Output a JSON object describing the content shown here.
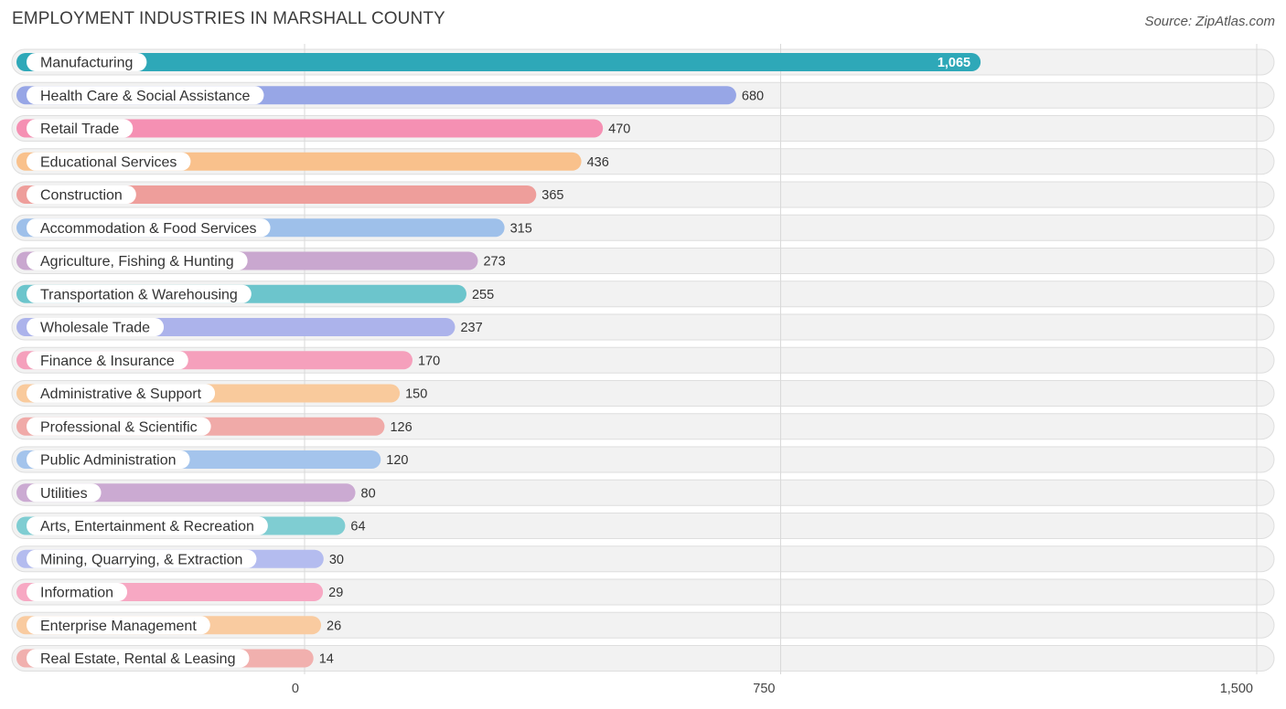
{
  "header": {
    "title": "EMPLOYMENT INDUSTRIES IN MARSHALL COUNTY",
    "source": "Source: ZipAtlas.com"
  },
  "chart_data": {
    "type": "bar",
    "orientation": "horizontal",
    "title": "EMPLOYMENT INDUSTRIES IN MARSHALL COUNTY",
    "categories": [
      "Manufacturing",
      "Health Care & Social Assistance",
      "Retail Trade",
      "Educational Services",
      "Construction",
      "Accommodation & Food Services",
      "Agriculture, Fishing & Hunting",
      "Transportation & Warehousing",
      "Wholesale Trade",
      "Finance & Insurance",
      "Administrative & Support",
      "Professional & Scientific",
      "Public Administration",
      "Utilities",
      "Arts, Entertainment & Recreation",
      "Mining, Quarrying, & Extraction",
      "Information",
      "Enterprise Management",
      "Real Estate, Rental & Leasing"
    ],
    "values": [
      1065,
      680,
      470,
      436,
      365,
      315,
      273,
      255,
      237,
      170,
      150,
      126,
      120,
      80,
      64,
      30,
      29,
      26,
      14
    ],
    "value_labels": [
      "1,065",
      "680",
      "470",
      "436",
      "365",
      "315",
      "273",
      "255",
      "237",
      "170",
      "150",
      "126",
      "120",
      "80",
      "64",
      "30",
      "29",
      "26",
      "14"
    ],
    "colors": [
      "#2ea8b8",
      "#97a6e6",
      "#f590b3",
      "#f9c18c",
      "#ee9e9b",
      "#9ec0ea",
      "#c9a7cf",
      "#6cc5cc",
      "#acb3eb",
      "#f5a0bc",
      "#f9ca9c",
      "#f0aaa8",
      "#a4c4ec",
      "#cbaad2",
      "#7fcdd2",
      "#b4bcef",
      "#f7a8c3",
      "#f9cba0",
      "#f1b0ae"
    ],
    "xlim": [
      0,
      1500
    ],
    "xticks": [
      0,
      750,
      1500
    ],
    "xtick_labels": [
      "0",
      "750",
      "1,500"
    ],
    "grid": true
  }
}
